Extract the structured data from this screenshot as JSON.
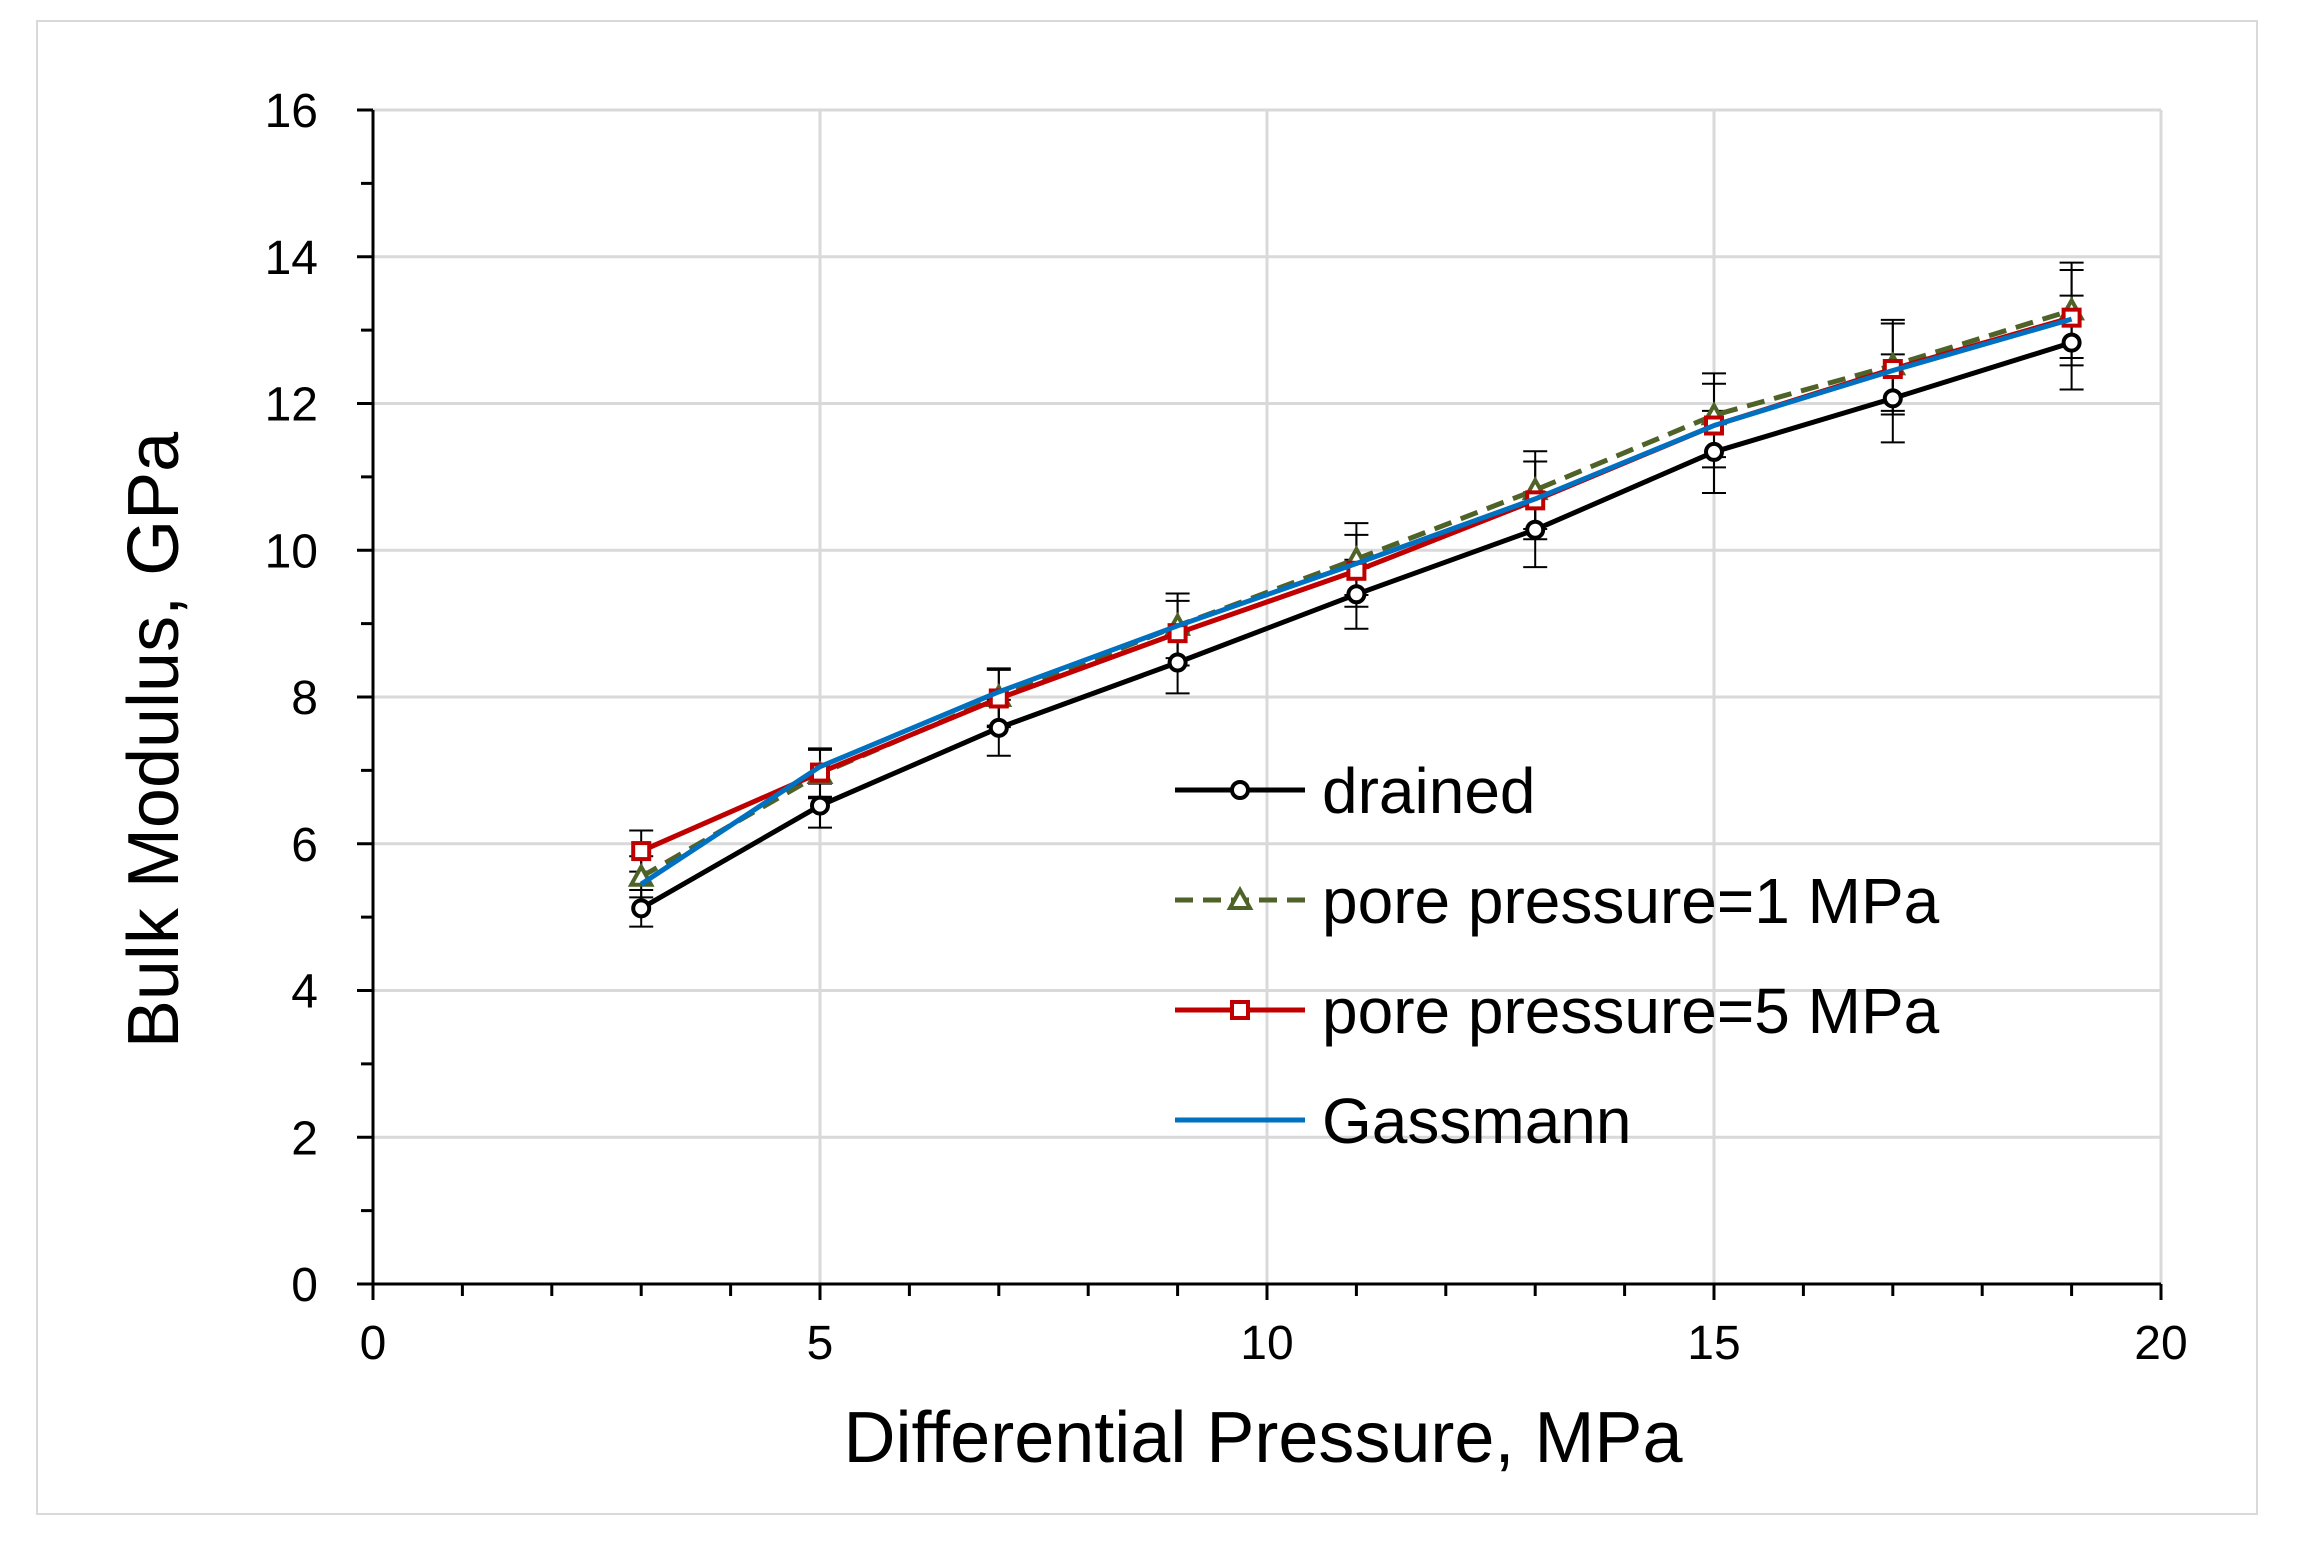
{
  "chart_data": {
    "type": "line",
    "xlabel": "Differential Pressure, MPa",
    "ylabel": "Bulk Modulus, GPa",
    "xlim": [
      0,
      20
    ],
    "ylim": [
      0,
      16
    ],
    "x_ticks": [
      0,
      5,
      10,
      15,
      20
    ],
    "y_ticks": [
      0,
      2,
      4,
      6,
      8,
      10,
      12,
      14,
      16
    ],
    "x_tick_labels": [
      "0",
      "5",
      "10",
      "15",
      "20"
    ],
    "y_tick_labels": [
      "0",
      "2",
      "4",
      "6",
      "8",
      "10",
      "12",
      "14",
      "16"
    ],
    "grid": true,
    "legend_position": "center-right",
    "x": [
      3,
      5,
      7,
      9,
      11,
      13,
      15,
      17,
      19
    ],
    "series": [
      {
        "name": "drained",
        "values": [
          5.12,
          6.52,
          7.58,
          8.47,
          9.4,
          10.28,
          11.34,
          12.07,
          12.83
        ],
        "error": [
          0.25,
          0.3,
          0.38,
          0.42,
          0.47,
          0.51,
          0.56,
          0.6,
          0.64
        ],
        "color": "#000000",
        "line": "solid",
        "marker": "circle"
      },
      {
        "name": "pore pressure=1 MPa",
        "values": [
          5.55,
          6.95,
          8.0,
          8.97,
          9.88,
          10.82,
          11.84,
          12.52,
          13.27
        ],
        "error": [
          0.28,
          0.33,
          0.39,
          0.44,
          0.49,
          0.53,
          0.57,
          0.62,
          0.65
        ],
        "color": "#4f6228",
        "line": "dashed",
        "marker": "triangle"
      },
      {
        "name": "pore pressure=5 MPa",
        "values": [
          5.9,
          6.97,
          7.98,
          8.87,
          9.72,
          10.68,
          11.7,
          12.47,
          13.17
        ],
        "error": [
          0.28,
          0.33,
          0.39,
          0.44,
          0.49,
          0.53,
          0.57,
          0.62,
          0.65
        ],
        "color": "#c00000",
        "line": "solid",
        "marker": "square"
      },
      {
        "name": "Gassmann",
        "values": [
          5.45,
          7.05,
          8.07,
          8.97,
          9.82,
          10.7,
          11.7,
          12.45,
          13.15
        ],
        "color": "#0070c0",
        "line": "solid",
        "marker": "none"
      }
    ]
  }
}
